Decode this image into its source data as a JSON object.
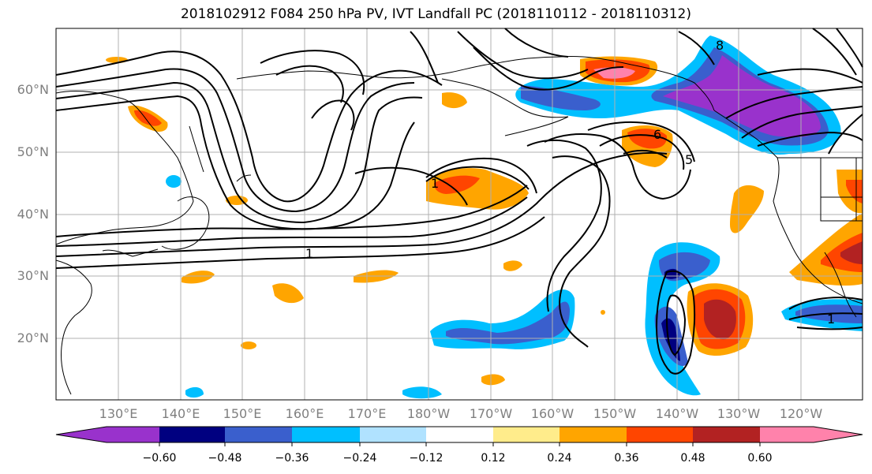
{
  "title": "2018102912 F084 250 hPa PV, IVT Landfall PC (2018110112 - 2018110312)",
  "lat_labels": [
    "60°N",
    "50°N",
    "40°N",
    "30°N",
    "20°N"
  ],
  "lon_labels": [
    "130°E",
    "140°E",
    "150°E",
    "160°E",
    "170°E",
    "180°W",
    "170°W",
    "160°W",
    "150°W",
    "140°W",
    "130°W",
    "120°W"
  ],
  "contour_labels": [
    "1",
    "6",
    "5",
    "1",
    "1",
    "8"
  ],
  "colorbar": {
    "tick_labels": [
      "−0.60",
      "−0.48",
      "−0.36",
      "−0.24",
      "−0.12",
      "0.12",
      "0.24",
      "0.36",
      "0.48",
      "0.60"
    ],
    "colors": [
      "#9932cc",
      "#000080",
      "#3a5fcd",
      "#00bfff",
      "#b0e2ff",
      "#ffffff",
      "#ffec8b",
      "#ffa500",
      "#ff4500",
      "#b22222",
      "#ff82ab"
    ]
  }
}
